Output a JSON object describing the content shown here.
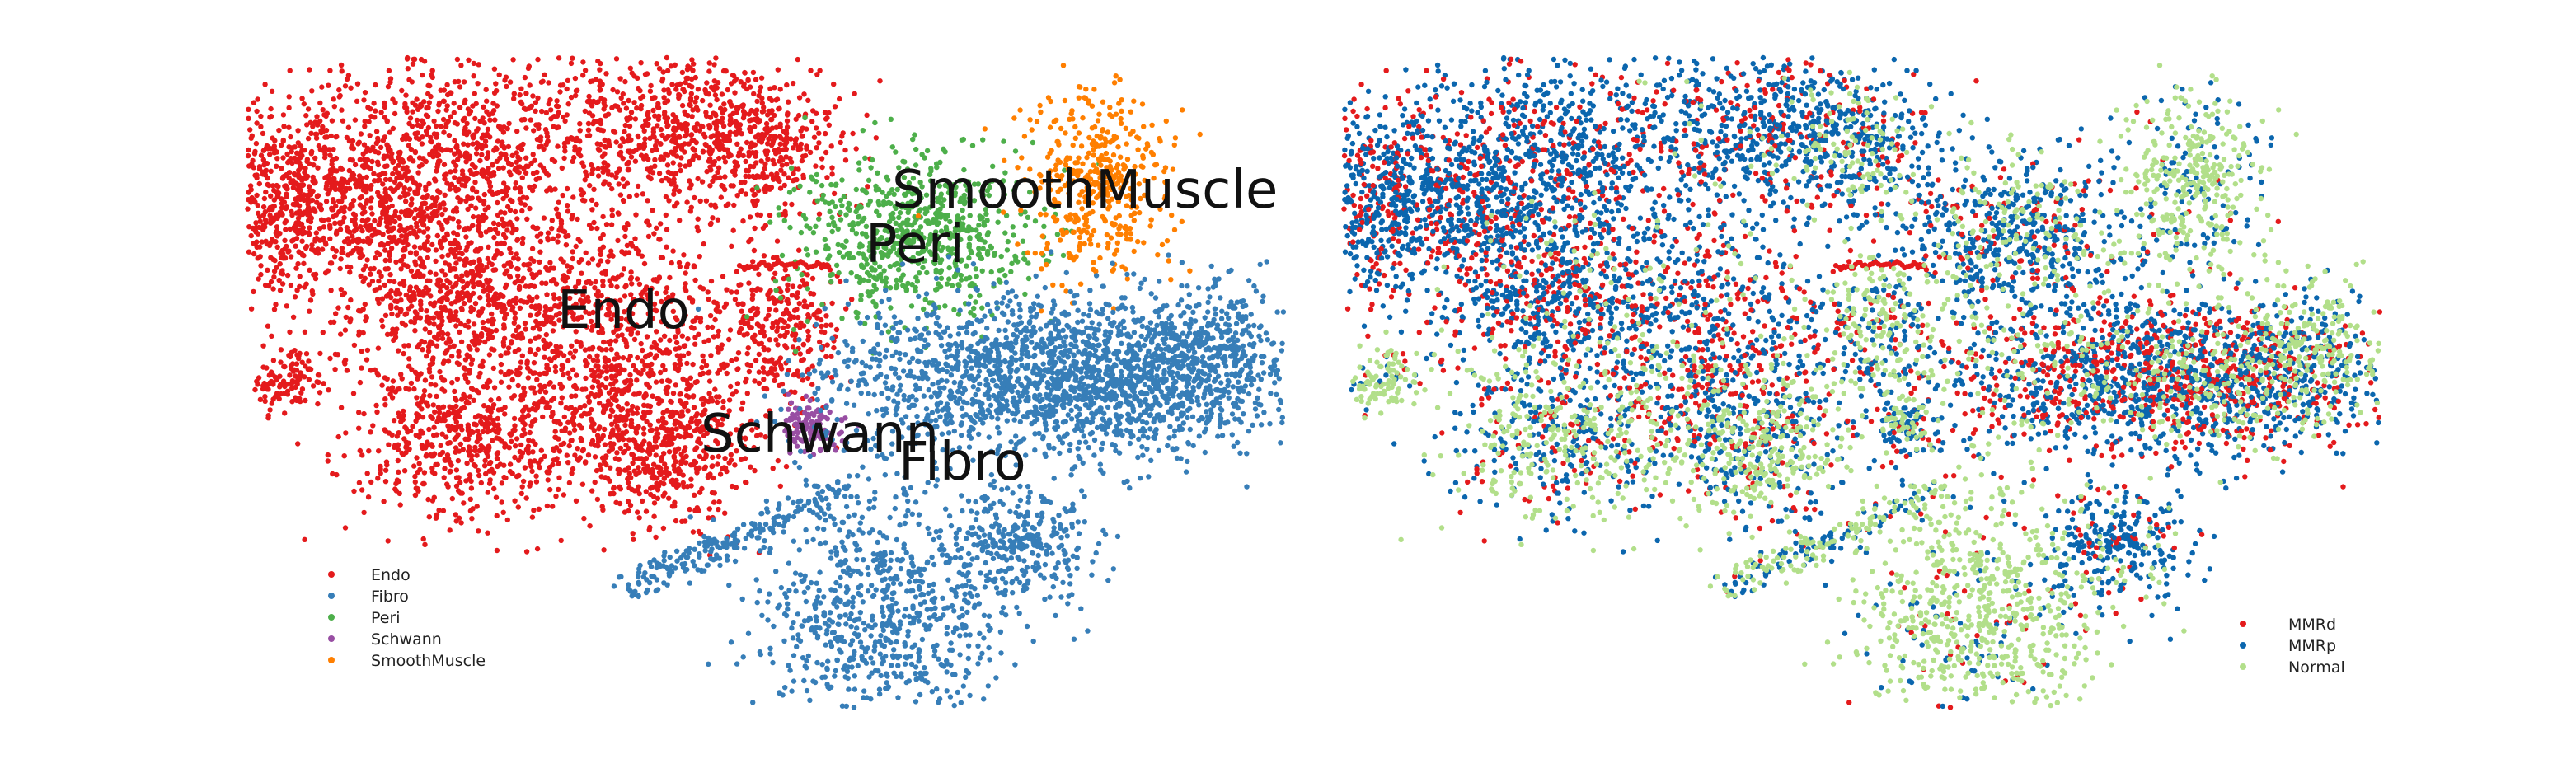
{
  "chart_data": [
    {
      "type": "scatter",
      "title": "",
      "xlabel": "",
      "ylabel": "",
      "axes_visible": false,
      "grid": false,
      "legend_position": "bottom-left",
      "series": [
        {
          "name": "Endo",
          "color": "#e41a1c"
        },
        {
          "name": "Fibro",
          "color": "#377eb8"
        },
        {
          "name": "Peri",
          "color": "#4daf4a"
        },
        {
          "name": "Schwann",
          "color": "#984ea3"
        },
        {
          "name": "SmoothMuscle",
          "color": "#ff7f00"
        }
      ],
      "annotations": [
        {
          "text": "SmoothMuscle",
          "x": 2.2,
          "y": 7.8
        },
        {
          "text": "Peri",
          "x": 1.0,
          "y": 6.2
        },
        {
          "text": "Endo",
          "x": -4.0,
          "y": 4.4
        },
        {
          "text": "Schwann",
          "x": -1.5,
          "y": 1.5
        },
        {
          "text": "Fibro",
          "x": 1.5,
          "y": 0.2
        }
      ]
    },
    {
      "type": "scatter",
      "title": "",
      "xlabel": "",
      "ylabel": "",
      "axes_visible": false,
      "grid": false,
      "legend_position": "bottom-right",
      "series": [
        {
          "name": "MMRd",
          "color": "#e41a1c"
        },
        {
          "name": "MMRp",
          "color": "#0b66ae"
        },
        {
          "name": "Normal",
          "color": "#b2df8a"
        }
      ]
    }
  ]
}
